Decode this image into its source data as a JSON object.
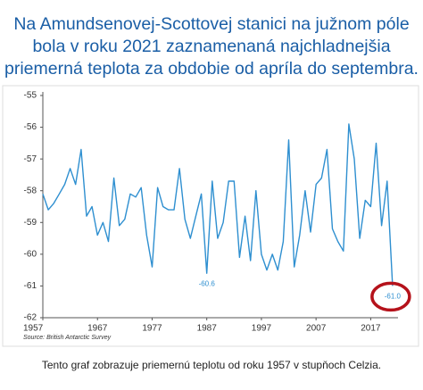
{
  "chart_data": {
    "type": "line",
    "title_lines": [
      "Na Amundsenovej-Scottovej stanici na južnom póle",
      "bola v roku 2021 zaznamenaná najchladnejšia",
      "priemerná teplota za obdobie od apríla do septembra."
    ],
    "source": "Source: British Antarctic Survey",
    "caption": "Tento graf zobrazuje priemernú teplotu od roku 1957 v stupňoch Celzia.",
    "x": [
      1957,
      1958,
      1959,
      1960,
      1961,
      1962,
      1963,
      1964,
      1965,
      1966,
      1967,
      1968,
      1969,
      1970,
      1971,
      1972,
      1973,
      1974,
      1975,
      1976,
      1977,
      1978,
      1979,
      1980,
      1981,
      1982,
      1983,
      1984,
      1985,
      1986,
      1987,
      1988,
      1989,
      1990,
      1991,
      1992,
      1993,
      1994,
      1995,
      1996,
      1997,
      1998,
      1999,
      2000,
      2001,
      2002,
      2003,
      2004,
      2005,
      2006,
      2007,
      2008,
      2009,
      2010,
      2011,
      2012,
      2013,
      2014,
      2015,
      2016,
      2017,
      2018,
      2019,
      2020,
      2021
    ],
    "series": [
      {
        "color": "#2e8fd0",
        "values": [
          -58.1,
          -58.6,
          -58.4,
          -58.1,
          -57.8,
          -57.3,
          -57.8,
          -56.7,
          -58.8,
          -58.5,
          -59.4,
          -59.0,
          -59.6,
          -57.6,
          -59.1,
          -58.9,
          -58.1,
          -58.2,
          -57.9,
          -59.4,
          -60.4,
          -57.9,
          -58.5,
          -58.6,
          -58.6,
          -57.3,
          -58.9,
          -59.5,
          -58.8,
          -58.1,
          -60.6,
          -57.7,
          -59.5,
          -59.0,
          -57.7,
          -57.7,
          -60.1,
          -58.8,
          -60.2,
          -58.0,
          -60.0,
          -60.5,
          -60.0,
          -60.5,
          -59.6,
          -56.4,
          -60.4,
          -59.4,
          -58.0,
          -59.3,
          -57.8,
          -57.6,
          -56.7,
          -59.2,
          -59.6,
          -59.9,
          -55.9,
          -57.0,
          -59.5,
          -58.3,
          -58.5,
          -56.5,
          -59.1,
          -57.7,
          -61.0
        ]
      }
    ],
    "annotations": [
      {
        "text": "-60.6",
        "x": 1987,
        "y": -60.6
      },
      {
        "text": "-61.0",
        "x": 2021,
        "y": -61.0
      }
    ],
    "xlim": [
      1957,
      2022
    ],
    "xticks": [
      1957,
      1967,
      1977,
      1987,
      1997,
      2007,
      2017
    ],
    "ylim": [
      -62,
      -55
    ],
    "yticks": [
      -55,
      -56,
      -57,
      -58,
      -59,
      -60,
      -61,
      -62
    ]
  }
}
